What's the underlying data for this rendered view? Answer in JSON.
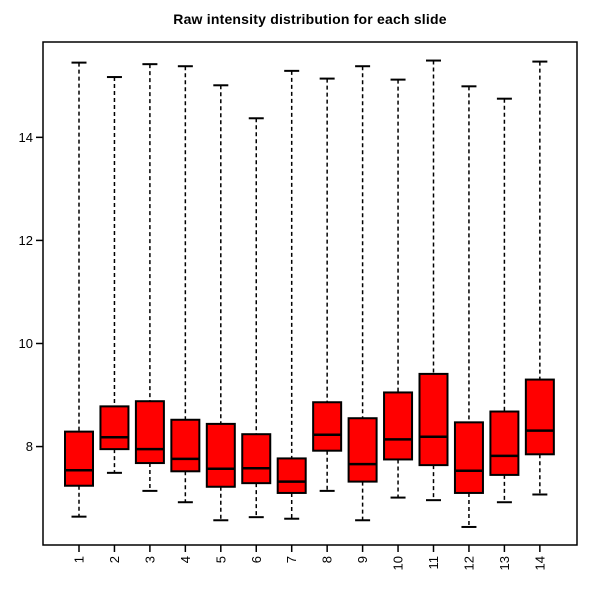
{
  "chart_data": {
    "type": "boxplot",
    "title": "Raw intensity distribution for each slide",
    "xlabel": "",
    "ylabel": "",
    "y_ticks": [
      8,
      10,
      12,
      14
    ],
    "ylim": [
      6.09,
      15.85
    ],
    "grid": false,
    "legend": "none",
    "box_fill": "#ff0000",
    "line_color": "#000000",
    "background_color": "#ffffff",
    "x_tick_label_rotation": 90,
    "categories": [
      "1",
      "2",
      "3",
      "4",
      "5",
      "6",
      "7",
      "8",
      "9",
      "10",
      "11",
      "12",
      "13",
      "14"
    ],
    "series": [
      {
        "category": "1",
        "whisker_low": 6.64,
        "q1": 7.24,
        "median": 7.54,
        "q3": 8.29,
        "whisker_high": 15.45
      },
      {
        "category": "2",
        "whisker_low": 7.49,
        "q1": 7.95,
        "median": 8.18,
        "q3": 8.78,
        "whisker_high": 15.17
      },
      {
        "category": "3",
        "whisker_low": 7.14,
        "q1": 7.68,
        "median": 7.95,
        "q3": 8.88,
        "whisker_high": 15.42
      },
      {
        "category": "4",
        "whisker_low": 6.92,
        "q1": 7.52,
        "median": 7.76,
        "q3": 8.52,
        "whisker_high": 15.38
      },
      {
        "category": "5",
        "whisker_low": 6.57,
        "q1": 7.22,
        "median": 7.57,
        "q3": 8.44,
        "whisker_high": 15.01
      },
      {
        "category": "6",
        "whisker_low": 6.63,
        "q1": 7.29,
        "median": 7.58,
        "q3": 8.24,
        "whisker_high": 14.37
      },
      {
        "category": "7",
        "whisker_low": 6.6,
        "q1": 7.1,
        "median": 7.32,
        "q3": 7.77,
        "whisker_high": 15.29
      },
      {
        "category": "8",
        "whisker_low": 7.14,
        "q1": 7.92,
        "median": 8.23,
        "q3": 8.86,
        "whisker_high": 15.14
      },
      {
        "category": "9",
        "whisker_low": 6.57,
        "q1": 7.32,
        "median": 7.66,
        "q3": 8.55,
        "whisker_high": 15.38
      },
      {
        "category": "10",
        "whisker_low": 7.01,
        "q1": 7.75,
        "median": 8.14,
        "q3": 9.05,
        "whisker_high": 15.12
      },
      {
        "category": "11",
        "whisker_low": 6.96,
        "q1": 7.64,
        "median": 8.19,
        "q3": 9.41,
        "whisker_high": 15.49
      },
      {
        "category": "12",
        "whisker_low": 6.44,
        "q1": 7.1,
        "median": 7.53,
        "q3": 8.47,
        "whisker_high": 14.99
      },
      {
        "category": "13",
        "whisker_low": 6.92,
        "q1": 7.45,
        "median": 7.82,
        "q3": 8.68,
        "whisker_high": 14.75
      },
      {
        "category": "14",
        "whisker_low": 7.07,
        "q1": 7.85,
        "median": 8.31,
        "q3": 9.3,
        "whisker_high": 15.47
      }
    ]
  }
}
